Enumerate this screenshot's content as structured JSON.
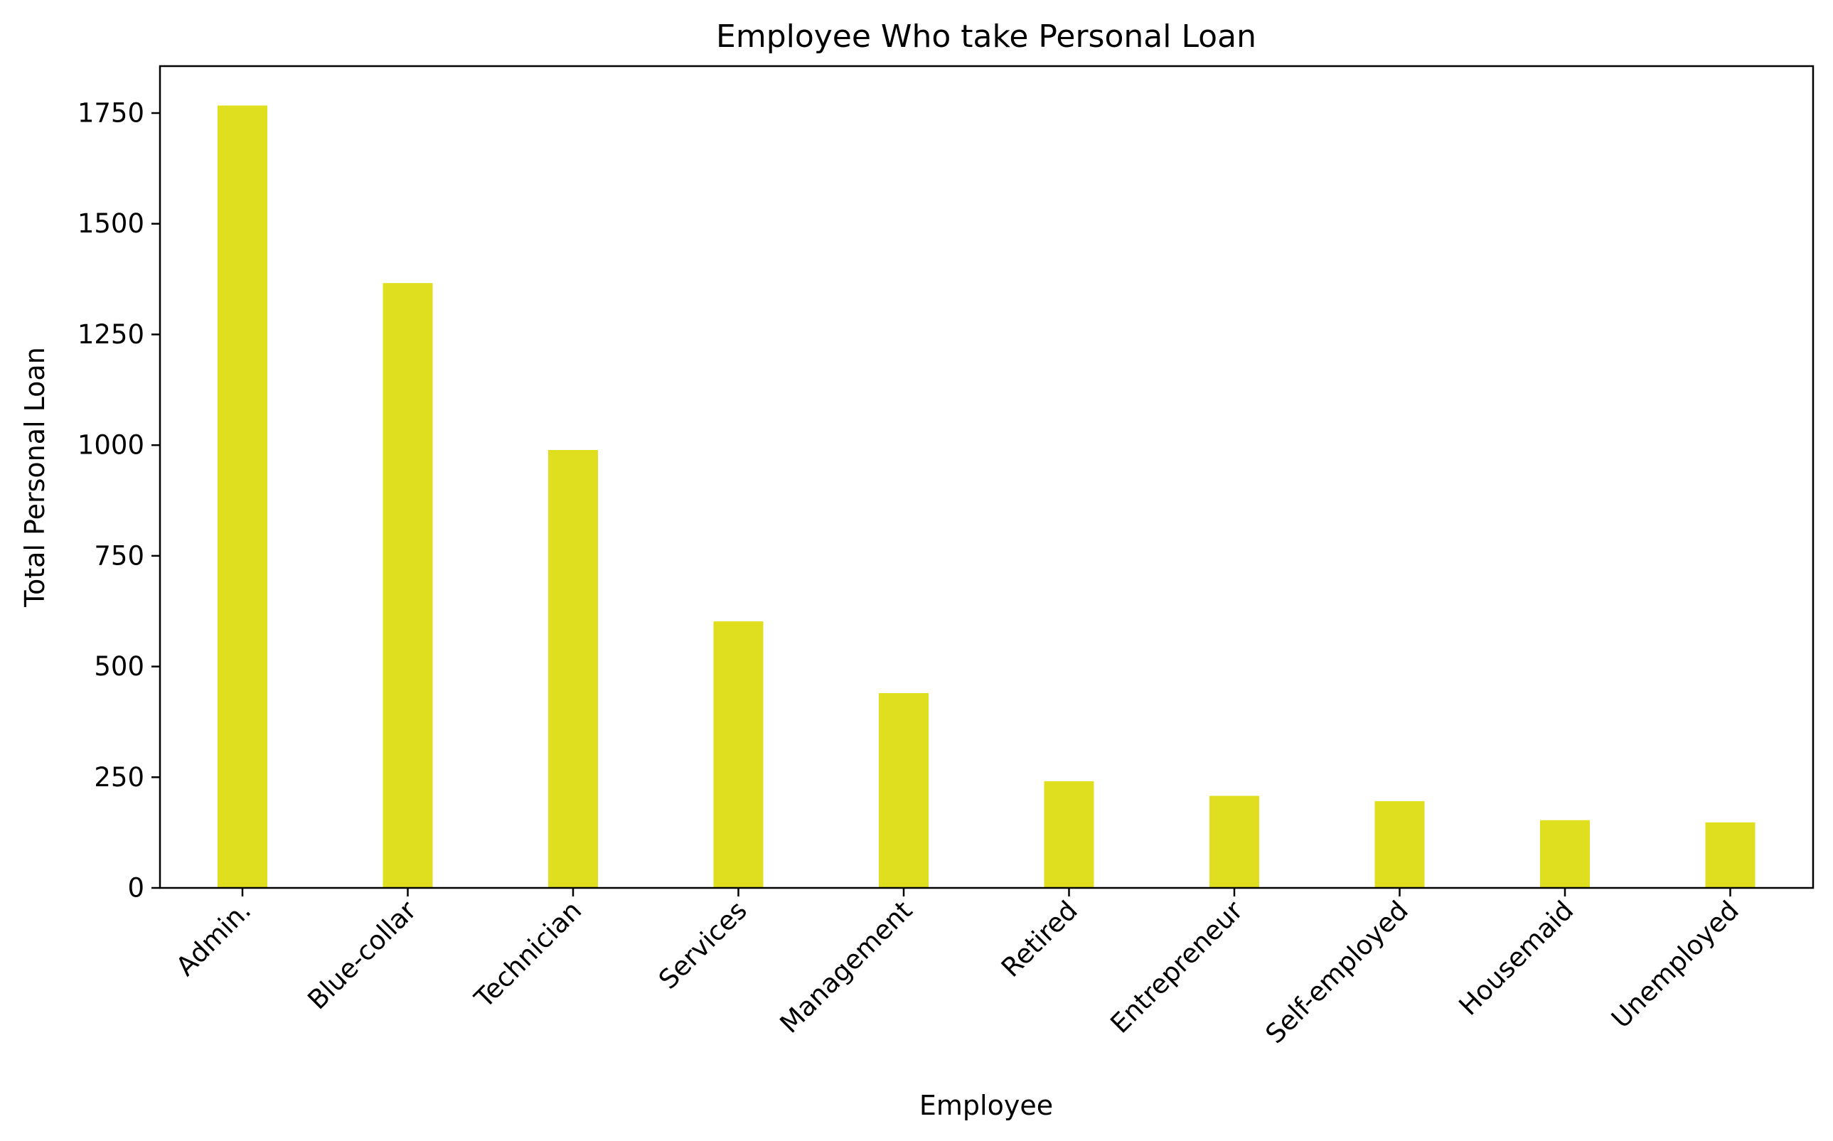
{
  "chart_data": {
    "type": "bar",
    "title": "Employee Who take Personal Loan",
    "xlabel": "Employee",
    "ylabel": "Total Personal Loan",
    "categories": [
      "Admin.",
      "Blue-collar",
      "Technician",
      "Services",
      "Management",
      "Retired",
      "Entrepreneur",
      "Self-employed",
      "Housemaid",
      "Unemployed"
    ],
    "values": [
      1767,
      1366,
      989,
      602,
      440,
      241,
      208,
      196,
      153,
      148
    ],
    "ylim": [
      0,
      1856
    ],
    "yticks": [
      0,
      250,
      500,
      750,
      1000,
      1250,
      1500,
      1750
    ],
    "bar_color": "#dfdf20",
    "grid": false,
    "legend": "none"
  }
}
